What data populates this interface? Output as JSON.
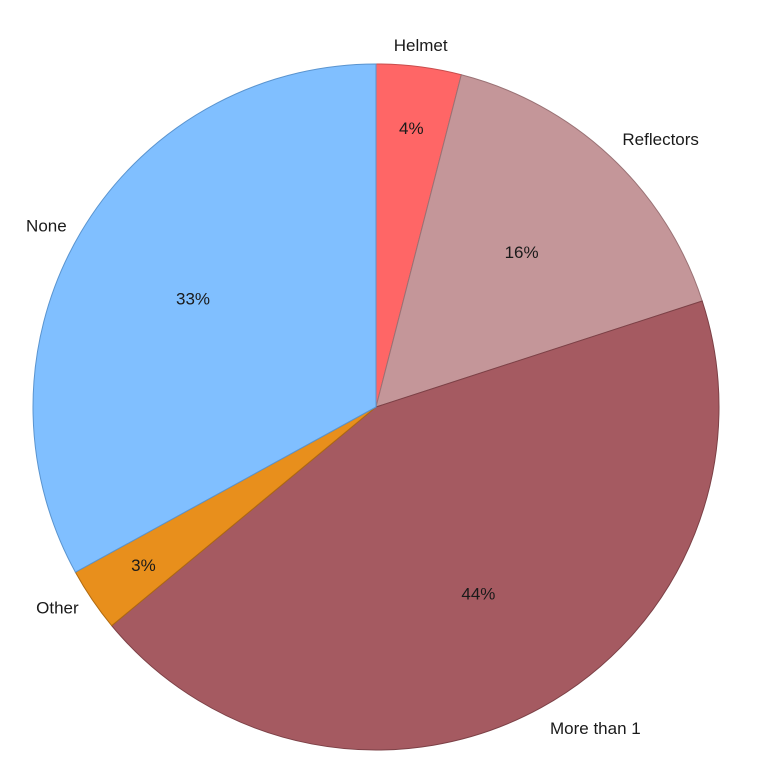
{
  "chart_data": {
    "type": "pie",
    "title": "",
    "start": "top",
    "direction": "clockwise",
    "slices": [
      {
        "label": "Helmet",
        "value": 4,
        "value_label": "4%",
        "color": "#ff6666",
        "stroke": "#c94d4d"
      },
      {
        "label": "Reflectors",
        "value": 16,
        "value_label": "16%",
        "color": "#c49699",
        "stroke": "#9a7275"
      },
      {
        "label": "More than 1",
        "value": 44,
        "value_label": "44%",
        "color": "#a55a61",
        "stroke": "#7c4046"
      },
      {
        "label": "Other",
        "value": 3,
        "value_label": "3%",
        "color": "#e88f1c",
        "stroke": "#b06a10"
      },
      {
        "label": "None",
        "value": 33,
        "value_label": "33%",
        "color": "#80bfff",
        "stroke": "#5a94cf"
      }
    ]
  }
}
